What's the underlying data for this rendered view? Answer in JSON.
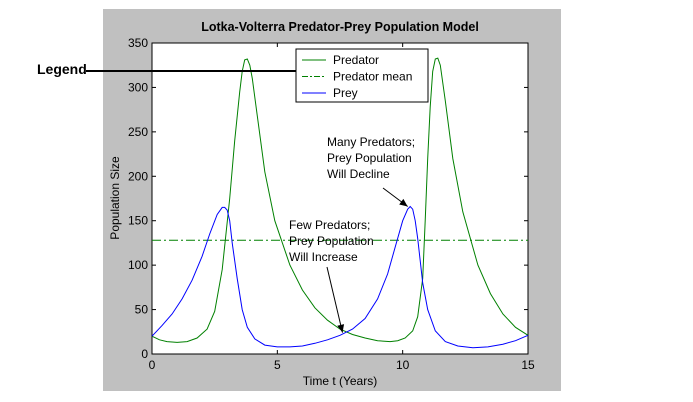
{
  "chart_data": {
    "type": "line",
    "title": "Lotka-Volterra Predator-Prey Population Model",
    "xlabel": "Time t (Years)",
    "ylabel": "Population Size",
    "xlim": [
      0,
      15
    ],
    "ylim": [
      0,
      350
    ],
    "xticks": [
      0,
      5,
      10,
      15
    ],
    "yticks": [
      0,
      50,
      100,
      150,
      200,
      250,
      300,
      350
    ],
    "grid": false,
    "legend_position": "top-center",
    "series": [
      {
        "name": "Predator",
        "style": "solid",
        "color": "#008000",
        "x": [
          0,
          0.3,
          0.6,
          1.0,
          1.4,
          1.8,
          2.2,
          2.5,
          2.8,
          3.1,
          3.3,
          3.5,
          3.6,
          3.7,
          3.8,
          3.9,
          4.0,
          4.2,
          4.5,
          4.9,
          5.5,
          6.0,
          6.5,
          7.0,
          7.5,
          8.0,
          8.5,
          9.0,
          9.5,
          9.8,
          10.1,
          10.4,
          10.6,
          10.8,
          10.9,
          11.0,
          11.1,
          11.2,
          11.3,
          11.4,
          11.5,
          11.7,
          12.0,
          12.4,
          13.0,
          13.5,
          14.0,
          14.5,
          15.0
        ],
        "values": [
          20,
          16,
          14,
          13,
          14,
          18,
          28,
          48,
          95,
          175,
          240,
          295,
          318,
          331,
          332,
          325,
          310,
          268,
          205,
          150,
          100,
          72,
          52,
          38,
          28,
          22,
          18,
          15,
          14,
          15,
          18,
          26,
          42,
          85,
          150,
          220,
          278,
          318,
          332,
          333,
          325,
          285,
          220,
          160,
          100,
          68,
          45,
          30,
          21
        ]
      },
      {
        "name": "Predator mean",
        "style": "dash-dot",
        "color": "#008000",
        "x": [
          0,
          15
        ],
        "values": [
          128,
          128
        ]
      },
      {
        "name": "Prey",
        "style": "solid",
        "color": "#0000ff",
        "x": [
          0,
          0.4,
          0.8,
          1.2,
          1.6,
          2.0,
          2.3,
          2.6,
          2.8,
          2.9,
          3.0,
          3.1,
          3.2,
          3.4,
          3.6,
          3.8,
          4.1,
          4.5,
          5.0,
          5.5,
          6.0,
          6.5,
          7.0,
          7.5,
          8.0,
          8.5,
          9.0,
          9.4,
          9.7,
          10.0,
          10.2,
          10.3,
          10.4,
          10.5,
          10.6,
          10.7,
          10.8,
          11.0,
          11.3,
          11.7,
          12.2,
          12.8,
          13.4,
          14.0,
          14.5,
          15.0
        ],
        "values": [
          20,
          32,
          45,
          62,
          83,
          110,
          135,
          157,
          165,
          165,
          162,
          150,
          125,
          85,
          50,
          30,
          17,
          10,
          8,
          8,
          9,
          12,
          16,
          21,
          28,
          40,
          62,
          90,
          120,
          150,
          163,
          166,
          163,
          150,
          130,
          105,
          80,
          50,
          26,
          14,
          9,
          7,
          8,
          11,
          15,
          21
        ]
      }
    ],
    "annotations": [
      {
        "lines": [
          "Many Predators;",
          "Prey Population",
          "Will Decline"
        ],
        "arrow_to": [
          10.2,
          166
        ]
      },
      {
        "lines": [
          "Few Predators;",
          "Prey Population",
          "Will Increase"
        ],
        "arrow_to": [
          7.6,
          24
        ]
      }
    ],
    "callout": {
      "label": "Legend"
    }
  }
}
